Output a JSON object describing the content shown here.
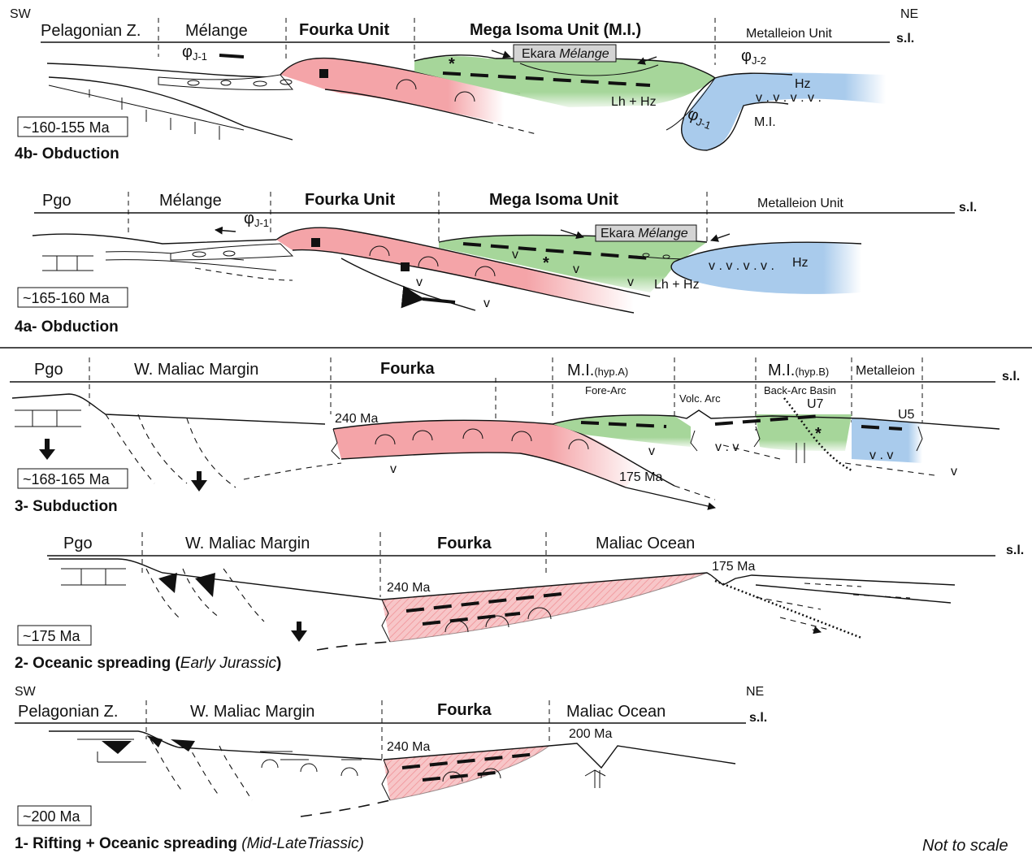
{
  "corner": {
    "sw_top": "SW",
    "ne_top": "NE",
    "sw_bottom": "SW",
    "ne_bottom": "NE",
    "not_to_scale": "Not to scale"
  },
  "sea_level": "s.l.",
  "panel_4b": {
    "age": "~160-155 Ma",
    "title": "4b- Obduction",
    "units": [
      "Pelagonian Z.",
      "Mélange",
      "Fourka Unit",
      "Mega Isoma Unit (M.I.)",
      "Metalleion Unit"
    ],
    "ekara_prefix": "Ekara ",
    "ekara_italic": "Mélange",
    "phi1": "φ",
    "phi1_sub": "J-1",
    "phi2": "φ",
    "phi2_sub": "J-2",
    "phi3": "φ",
    "phi3_sub": "J-1",
    "lh_hz": "Lh + Hz",
    "hz": "Hz",
    "mi": "M.I.",
    "v_marks": "v  .  v  .  v  .  v  ."
  },
  "panel_4a": {
    "age": "~165-160 Ma",
    "title": "4a- Obduction",
    "units": [
      "Pgo",
      "Mélange",
      "Fourka Unit",
      "Mega Isoma Unit",
      "Metalleion Unit"
    ],
    "ekara_prefix": "Ekara ",
    "ekara_italic": "Mélange",
    "phi": "φ",
    "phi_sub": "J-1",
    "lh_hz": "Lh + Hz",
    "hz": "Hz",
    "v_marks": "v  .  v  .  v  .  v ."
  },
  "panel_3": {
    "age": "~168-165 Ma",
    "title": "3- Subduction",
    "units": [
      "Pgo",
      "W. Maliac Margin",
      "Fourka",
      "M.I.",
      "M.I.",
      "Metalleion"
    ],
    "hyp_a": "(hyp.A)",
    "hyp_b": "(hyp.B)",
    "fore_arc": "Fore-Arc",
    "volc_arc": "Volc. Arc",
    "back_arc": "Back-Arc Basin",
    "u7": "U7",
    "u5": "U5",
    "age_240": "240 Ma",
    "age_175": "175 Ma"
  },
  "panel_2": {
    "age": "~175 Ma",
    "title_main": "2- Oceanic spreading (",
    "title_italic": "Early Jurassic",
    "title_end": ")",
    "units": [
      "Pgo",
      "W. Maliac Margin",
      "Fourka",
      "Maliac Ocean"
    ],
    "age_240": "240 Ma",
    "age_175": "175 Ma"
  },
  "panel_1": {
    "age": "~200 Ma",
    "title_main": "1- Rifting + Oceanic spreading ",
    "title_italic": "(Mid-LateTriassic)",
    "units": [
      "Pelagonian Z.",
      "W. Maliac Margin",
      "Fourka",
      "Maliac Ocean"
    ],
    "age_240": "240 Ma",
    "age_200": "200 Ma"
  },
  "colors": {
    "fourka_pink": "#f4a4a8",
    "isoma_green": "#a6d69a",
    "metalleion_blue": "#a9cbec",
    "ekara_box": "#d4d4d4"
  }
}
